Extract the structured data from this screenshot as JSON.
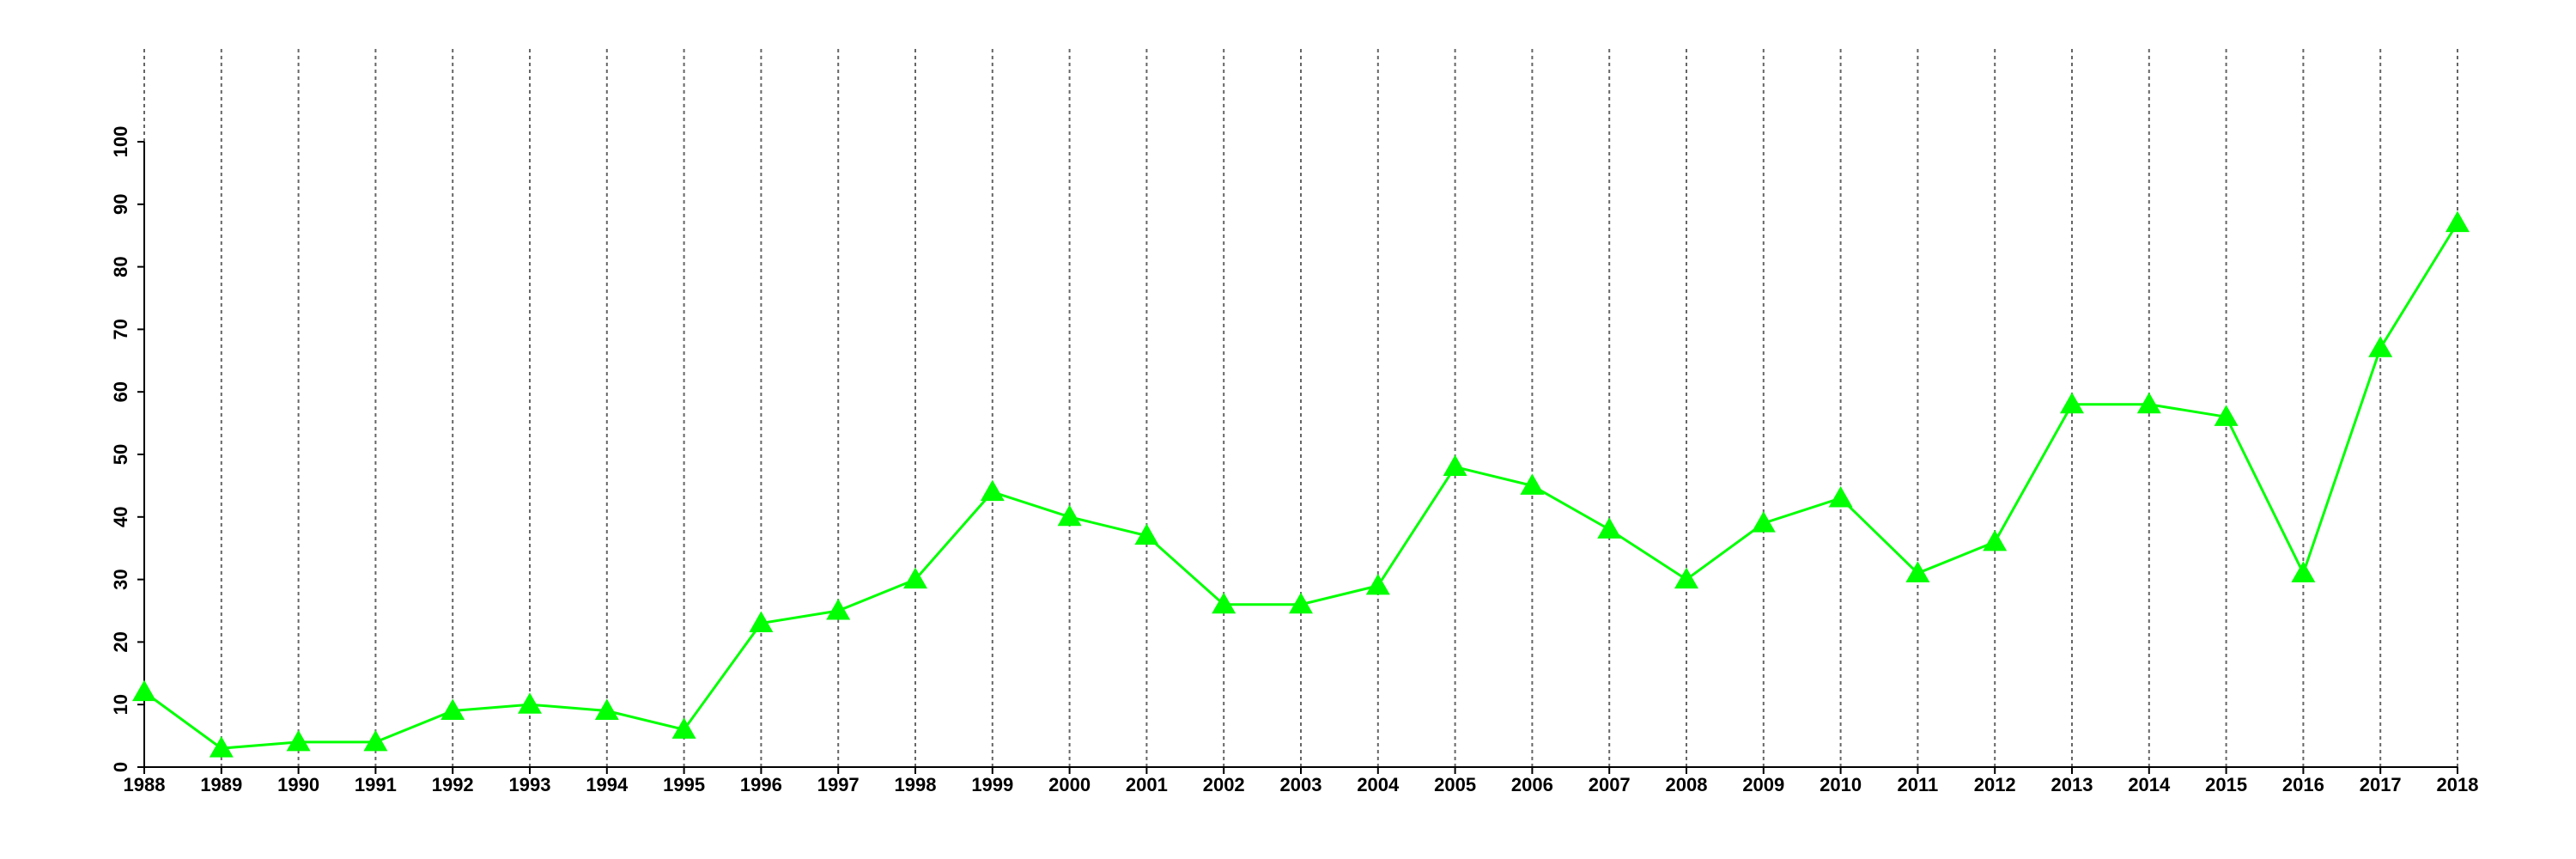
{
  "chart_data": {
    "type": "line",
    "x": [
      1988,
      1989,
      1990,
      1991,
      1992,
      1993,
      1994,
      1995,
      1996,
      1997,
      1998,
      1999,
      2000,
      2001,
      2002,
      2003,
      2004,
      2005,
      2006,
      2007,
      2008,
      2009,
      2010,
      2011,
      2012,
      2013,
      2014,
      2015,
      2016,
      2017,
      2018
    ],
    "series": [
      {
        "color": "#00ff00",
        "marker": "triangle",
        "values": [
          12,
          3,
          4,
          4,
          9,
          10,
          9,
          6,
          23,
          25,
          30,
          44,
          40,
          37,
          26,
          26,
          29,
          48,
          45,
          38,
          30,
          39,
          43,
          31,
          36,
          58,
          58,
          56,
          31,
          67,
          87
        ]
      }
    ],
    "xlim": [
      1988,
      2018
    ],
    "xticks": [
      1988,
      1989,
      1990,
      1991,
      1992,
      1993,
      1994,
      1995,
      1996,
      1997,
      1998,
      1999,
      2000,
      2001,
      2002,
      2003,
      2004,
      2005,
      2006,
      2007,
      2008,
      2009,
      2010,
      2011,
      2012,
      2013,
      2014,
      2015,
      2016,
      2017,
      2018
    ],
    "ylim": [
      0,
      100
    ],
    "yticks": [
      0,
      10,
      20,
      30,
      40,
      50,
      60,
      70,
      80,
      90,
      100
    ],
    "grid": "x"
  }
}
